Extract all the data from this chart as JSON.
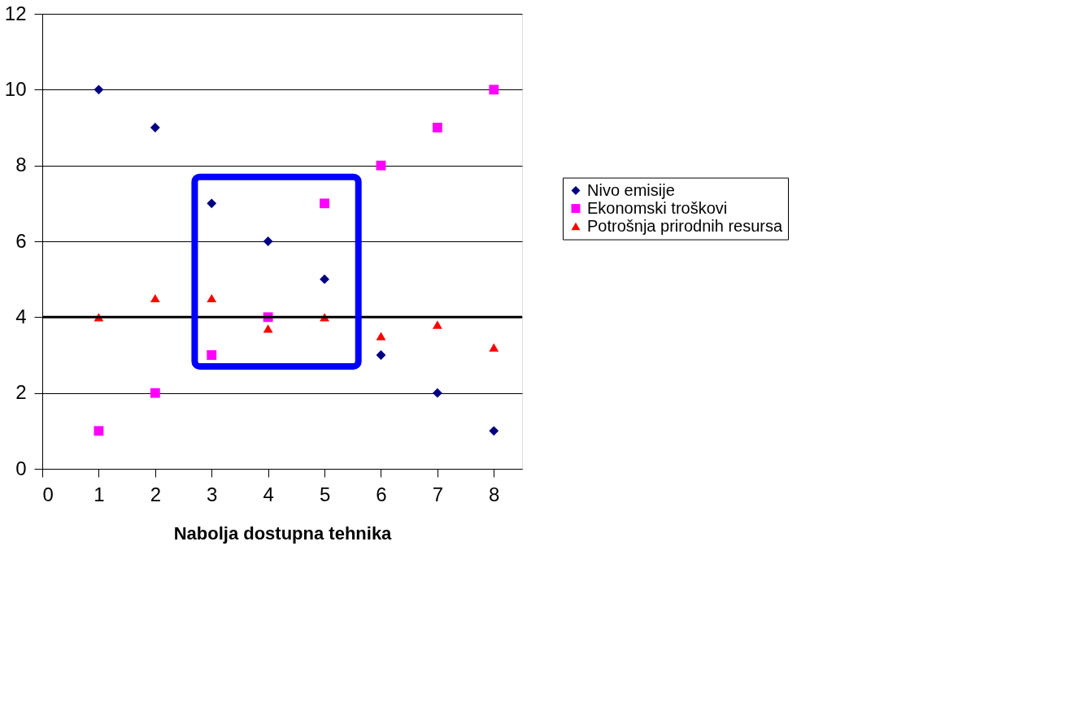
{
  "chart_data": {
    "type": "scatter",
    "xlabel": "Nabolja dostupna tehnika",
    "x": [
      1,
      2,
      3,
      4,
      5,
      6,
      7,
      8
    ],
    "xlim": [
      0,
      8.5
    ],
    "xticks": [
      0,
      1,
      2,
      3,
      4,
      5,
      6,
      7,
      8
    ],
    "ylim": [
      0,
      12
    ],
    "yticks": [
      0,
      2,
      4,
      6,
      8,
      10,
      12
    ],
    "grid": "y",
    "legend": "right",
    "series": [
      {
        "name": "Nivo emisije",
        "color": "#000080",
        "marker": "diamond",
        "values": [
          10,
          9,
          7,
          6,
          5,
          3,
          2,
          1
        ]
      },
      {
        "name": "Ekonomski troškovi",
        "color": "#ff00ff",
        "marker": "square",
        "values": [
          1,
          2,
          3,
          4,
          7,
          8,
          9,
          10
        ]
      },
      {
        "name": "Potrošnja prirodnih resursa",
        "color": "#ff0000",
        "marker": "triangle",
        "values": [
          4,
          4.5,
          4.5,
          3.7,
          4,
          3.5,
          3.8,
          3.2
        ]
      }
    ],
    "ref_lines": [
      {
        "axis": "y",
        "value": 4,
        "color": "#000000"
      }
    ]
  }
}
